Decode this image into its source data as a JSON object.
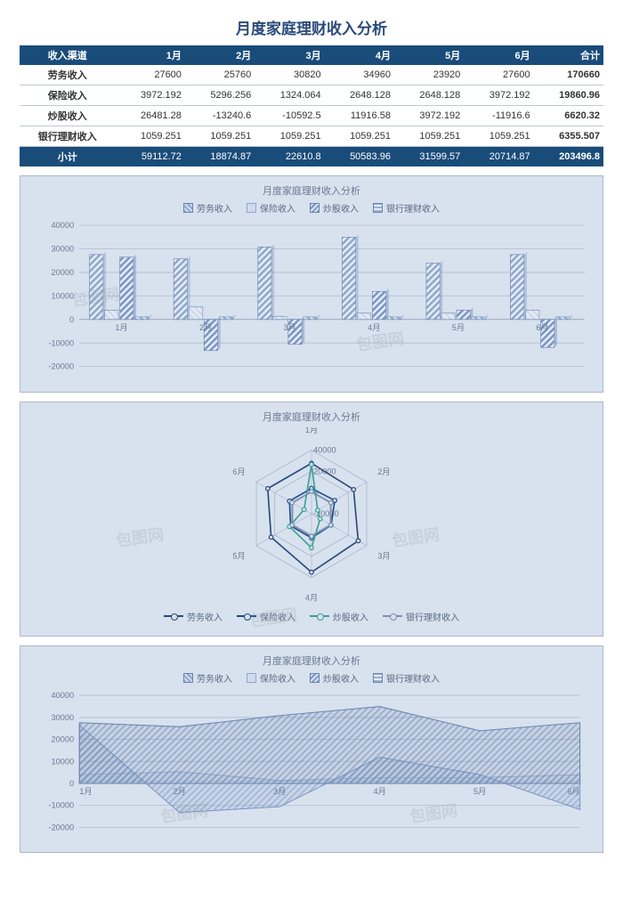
{
  "page_title": "月度家庭理财收入分析",
  "table": {
    "header_bg": "#1a4c7a",
    "header_color": "#ffffff",
    "row_border": "#c0c8d4",
    "columns": [
      "收入渠道",
      "1月",
      "2月",
      "3月",
      "4月",
      "5月",
      "6月",
      "合计"
    ],
    "rows": [
      {
        "label": "劳务收入",
        "values": [
          "27600",
          "25760",
          "30820",
          "34960",
          "23920",
          "27600"
        ],
        "total": "170660"
      },
      {
        "label": "保险收入",
        "values": [
          "3972.192",
          "5296.256",
          "1324.064",
          "2648.128",
          "2648.128",
          "3972.192"
        ],
        "total": "19860.96"
      },
      {
        "label": "炒股收入",
        "values": [
          "26481.28",
          "-13240.6",
          "-10592.5",
          "11916.58",
          "3972.192",
          "-11916.6"
        ],
        "total": "6620.32"
      },
      {
        "label": "银行理财收入",
        "values": [
          "1059.251",
          "1059.251",
          "1059.251",
          "1059.251",
          "1059.251",
          "1059.251"
        ],
        "total": "6355.507"
      }
    ],
    "subtotal": {
      "label": "小计",
      "values": [
        "59112.72",
        "18874.87",
        "22610.8",
        "50583.96",
        "31599.57",
        "20714.87"
      ],
      "total": "203496.8"
    }
  },
  "bar_chart": {
    "title": "月度家庭理财收入分析",
    "background_color": "#d8e1ee",
    "categories": [
      "1月",
      "2月",
      "3月",
      "4月",
      "5月",
      "6月"
    ],
    "legend": [
      "劳务收入",
      "保险收入",
      "炒股收入",
      "银行理财收入"
    ],
    "series_colors": [
      "#8fa8cc",
      "#cfdaeb",
      "#7a96c4",
      "#9ab0d0"
    ],
    "ylim": [
      -20000,
      40000
    ],
    "ytick_step": 10000,
    "data": [
      [
        27600,
        25760,
        30820,
        34960,
        23920,
        27600
      ],
      [
        3972,
        5296,
        1324,
        2648,
        2648,
        3972
      ],
      [
        26481,
        -13241,
        -10593,
        11917,
        3972,
        -11917
      ],
      [
        1059,
        1059,
        1059,
        1059,
        1059,
        1059
      ]
    ]
  },
  "radar_chart": {
    "title": "月度家庭理财收入分析",
    "axes": [
      "1月",
      "2月",
      "3月",
      "4月",
      "5月",
      "6月"
    ],
    "rings": [
      40000,
      20000,
      0,
      -20000
    ],
    "legend": [
      "劳务收入",
      "保险收入",
      "炒股收入",
      "银行理财收入"
    ],
    "series_colors": [
      "#2a4a7a",
      "#1a4c8a",
      "#3aa096",
      "#7a90b0"
    ],
    "data": [
      [
        27600,
        25760,
        30820,
        34960,
        23920,
        27600
      ],
      [
        3972,
        5296,
        1324,
        2648,
        2648,
        3972
      ],
      [
        26481,
        -13241,
        -10593,
        11917,
        3972,
        -11917
      ],
      [
        1059,
        1059,
        1059,
        1059,
        1059,
        1059
      ]
    ]
  },
  "area_chart": {
    "title": "月度家庭理财收入分析",
    "categories": [
      "1月",
      "2月",
      "3月",
      "4月",
      "5月",
      "6月"
    ],
    "legend": [
      "劳务收入",
      "保险收入",
      "炒股收入",
      "银行理财收入"
    ],
    "series_colors": [
      "#6a85b0",
      "#9ab0d0",
      "#7a96c4",
      "#b8c8de"
    ],
    "ylim": [
      -20000,
      40000
    ],
    "ytick_step": 10000,
    "data": [
      [
        27600,
        25760,
        30820,
        34960,
        23920,
        27600
      ],
      [
        3972,
        5296,
        1324,
        2648,
        2648,
        3972
      ],
      [
        26481,
        -13241,
        -10593,
        11917,
        3972,
        -11917
      ],
      [
        1059,
        1059,
        1059,
        1059,
        1059,
        1059
      ]
    ]
  },
  "watermark_text": "包图网"
}
